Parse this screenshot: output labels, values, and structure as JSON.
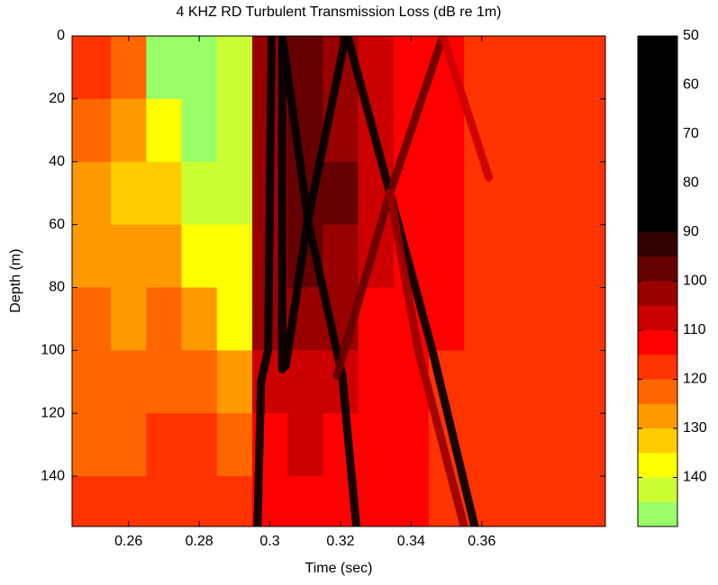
{
  "chart_data": {
    "type": "heatmap",
    "title": "4 KHZ RD Turbulent Transmission Loss (dB re 1m)",
    "x_label": "Time (sec)",
    "y_label": "Depth (m)",
    "xlim": [
      0.244,
      0.395
    ],
    "ylim": [
      0,
      156
    ],
    "xticks": [
      0.26,
      0.28,
      0.3,
      0.32,
      0.34,
      0.36
    ],
    "yticks": [
      0,
      20,
      40,
      60,
      80,
      100,
      120,
      140
    ],
    "y_reversed": true,
    "colormap": "jet_reversed",
    "clim": [
      50,
      150
    ],
    "color_step": 5,
    "cticks": [
      50,
      60,
      70,
      80,
      90,
      100,
      110,
      120,
      130,
      140
    ],
    "x": [
      0.25,
      0.26,
      0.27,
      0.28,
      0.29,
      0.3,
      0.31,
      0.32,
      0.33,
      0.34,
      0.35,
      0.36,
      0.37,
      0.38,
      0.39
    ],
    "y": [
      10,
      30,
      50,
      70,
      90,
      110,
      130,
      150
    ],
    "z": [
      [
        118,
        120,
        145,
        147,
        140,
        100,
        95,
        100,
        108,
        112,
        112,
        115,
        118,
        118,
        118
      ],
      [
        120,
        125,
        138,
        145,
        140,
        100,
        95,
        100,
        108,
        112,
        112,
        115,
        115,
        115,
        115
      ],
      [
        125,
        130,
        130,
        140,
        140,
        100,
        95,
        98,
        108,
        112,
        112,
        115,
        115,
        115,
        115
      ],
      [
        125,
        128,
        125,
        135,
        138,
        100,
        98,
        100,
        108,
        112,
        112,
        115,
        115,
        115,
        115
      ],
      [
        122,
        125,
        120,
        125,
        135,
        102,
        100,
        102,
        110,
        112,
        112,
        115,
        115,
        115,
        115
      ],
      [
        120,
        122,
        120,
        120,
        125,
        105,
        105,
        108,
        110,
        112,
        115,
        115,
        115,
        115,
        115
      ],
      [
        120,
        120,
        118,
        118,
        120,
        110,
        108,
        110,
        112,
        112,
        115,
        115,
        115,
        115,
        115
      ],
      [
        118,
        118,
        118,
        118,
        118,
        112,
        110,
        112,
        112,
        112,
        115,
        115,
        115,
        115,
        115
      ]
    ],
    "rays": [
      {
        "x": [
          0.2965,
          0.2975,
          0.2995,
          0.3005
        ],
        "y": [
          156,
          110,
          100,
          0
        ],
        "value": 85
      },
      {
        "x": [
          0.3035,
          0.3035
        ],
        "y": [
          0,
          106
        ],
        "value": 60
      },
      {
        "x": [
          0.3035,
          0.311,
          0.3205,
          0.3245
        ],
        "y": [
          0,
          60,
          108,
          156
        ],
        "value": 60
      },
      {
        "x": [
          0.3215,
          0.3105,
          0.3045
        ],
        "y": [
          0,
          60,
          105
        ],
        "value": 60
      },
      {
        "x": [
          0.322,
          0.334,
          0.346,
          0.358
        ],
        "y": [
          0,
          50,
          100,
          156
        ],
        "value": 88
      },
      {
        "x": [
          0.349,
          0.334,
          0.319
        ],
        "y": [
          0,
          50,
          108
        ],
        "value": 95
      },
      {
        "x": [
          0.349,
          0.362
        ],
        "y": [
          0,
          45
        ],
        "value": 105
      },
      {
        "x": [
          0.334,
          0.342,
          0.355
        ],
        "y": [
          50,
          100,
          156
        ],
        "value": 100
      }
    ]
  }
}
